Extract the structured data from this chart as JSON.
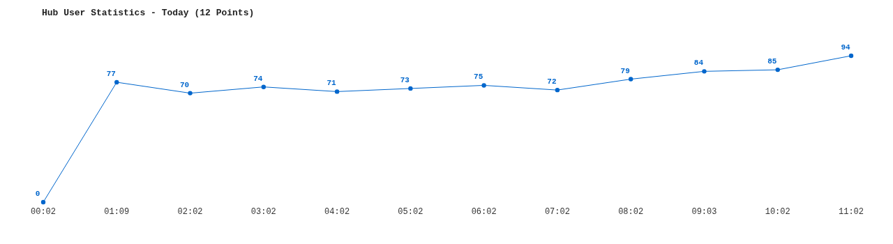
{
  "chart_data": {
    "type": "line",
    "title": "Hub User Statistics - Today (12 Points)",
    "categories": [
      "00:02",
      "01:09",
      "02:02",
      "03:02",
      "04:02",
      "05:02",
      "06:02",
      "07:02",
      "08:02",
      "09:03",
      "10:02",
      "11:02"
    ],
    "series": [
      {
        "color": "#0066cc",
        "values": [
          0,
          77,
          70,
          74,
          71,
          73,
          75,
          72,
          79,
          84,
          85,
          94
        ]
      }
    ],
    "data_labels": true,
    "marker": "circle"
  }
}
